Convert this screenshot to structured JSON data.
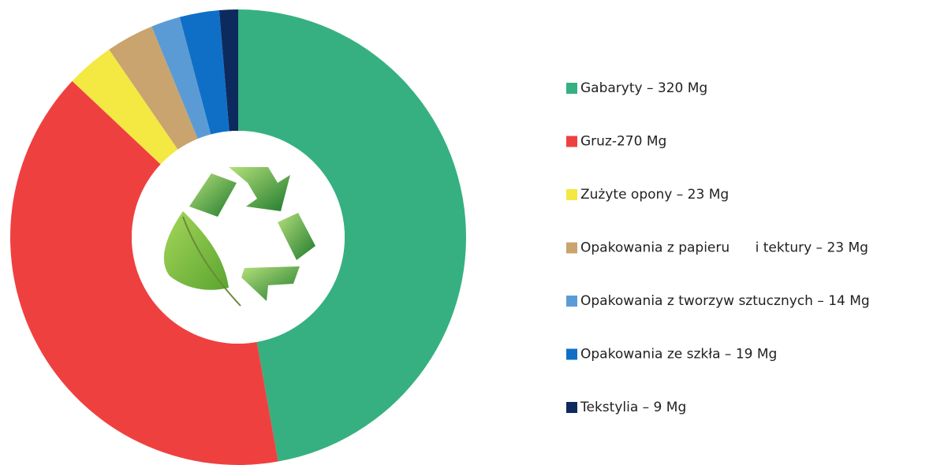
{
  "chart_data": {
    "type": "donut",
    "categories": [
      "Gabaryty – 320 Mg",
      "Gruz-270 Mg",
      "Zużyte opony – 23 Mg",
      "Opakowania z papieru      i tektury – 23 Mg",
      "Opakowania z tworzyw sztucznych – 14 Mg",
      "Opakowania ze szkła – 19 Mg",
      "Tekstylia – 9 Mg"
    ],
    "values": [
      320,
      270,
      23,
      23,
      14,
      19,
      9
    ],
    "colors": [
      "#36b080",
      "#ef4040",
      "#f4e842",
      "#c9a46f",
      "#5b9bd5",
      "#0f6fc6",
      "#0d2a5e"
    ]
  }
}
